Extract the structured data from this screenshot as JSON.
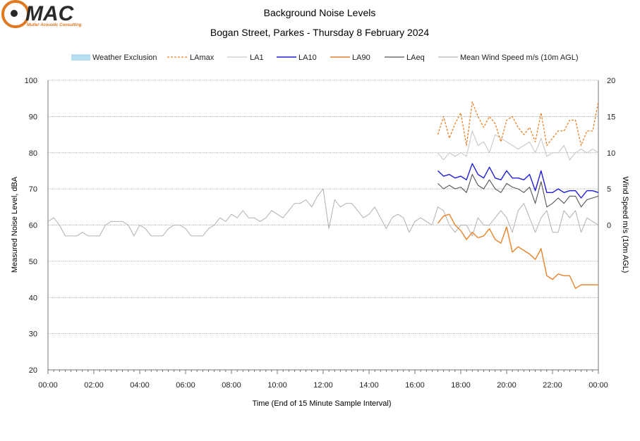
{
  "logo": {
    "brand": "MAC",
    "tagline": "Muller Acoustic Consulting"
  },
  "chart_data": {
    "type": "line",
    "title": "Background Noise Levels",
    "subtitle": "Bogan Street, Parkes - Thursday 8 February 2024",
    "xlabel": "Time (End of 15 Minute Sample Interval)",
    "ylabel": "Measured Noise Level, dBA",
    "y2label": "Wind Speed m/s (10m AGL)",
    "xlim": [
      0,
      96
    ],
    "ylim": [
      20,
      100
    ],
    "y2lim": [
      -20,
      20
    ],
    "x_tick_labels": [
      "00:00",
      "02:00",
      "04:00",
      "06:00",
      "08:00",
      "10:00",
      "12:00",
      "14:00",
      "16:00",
      "18:00",
      "20:00",
      "22:00",
      "00:00"
    ],
    "y_ticks": [
      20,
      30,
      40,
      50,
      60,
      70,
      80,
      90,
      100
    ],
    "y2_ticks": [
      0,
      5,
      10,
      15,
      20
    ],
    "grid": "horizontal",
    "legend_position": "top",
    "legend": [
      "Weather Exclusion",
      "LAmax",
      "LA1",
      "LA10",
      "LA90",
      "LAeq",
      "Mean Wind Speed m/s (10m AGL)"
    ],
    "colors": {
      "weather": "#b8dcf0",
      "LAmax": "#e8822a",
      "LA1": "#c8c8c8",
      "LA10": "#1f1fd8",
      "LA90": "#e8822a",
      "LAeq": "#555555",
      "wind": "#b0b0b0",
      "grid": "#9a9a9a",
      "logo_orange": "#e07820",
      "logo_dark": "#2a2a2a"
    },
    "series": [
      {
        "name": "LAmax",
        "style": "dashed",
        "axis": "left",
        "x_start": 68,
        "values": [
          85,
          90,
          84,
          88,
          91,
          82,
          94,
          90,
          87,
          90,
          88,
          83,
          89,
          90,
          87,
          85,
          87,
          83,
          91,
          82,
          84,
          86,
          86,
          89,
          89,
          82,
          86,
          86,
          94
        ]
      },
      {
        "name": "LA1",
        "style": "solid",
        "axis": "left",
        "x_start": 68,
        "values": [
          80,
          78,
          80,
          79,
          80,
          79,
          86,
          82,
          83,
          80,
          85,
          84,
          83,
          82,
          81,
          82,
          83,
          80,
          84,
          79,
          80,
          80,
          82,
          78,
          80,
          81,
          80,
          81,
          80
        ]
      },
      {
        "name": "LA10",
        "style": "solid",
        "axis": "left",
        "x_start": 68,
        "values": [
          75,
          73.5,
          74,
          73,
          73.5,
          72.5,
          77,
          74,
          73,
          76,
          73,
          72.5,
          75,
          73,
          73,
          72.5,
          74,
          69.5,
          75,
          69,
          69,
          70,
          69,
          69.5,
          69.5,
          67.5,
          69.5,
          69.5,
          69
        ]
      },
      {
        "name": "LA90",
        "style": "solid",
        "axis": "left",
        "x_start": 68,
        "values": [
          60.5,
          62.5,
          63,
          60,
          58.5,
          56,
          58,
          56.5,
          57,
          59,
          56,
          55,
          59.5,
          52.5,
          54,
          53,
          52,
          50.5,
          53.5,
          46,
          45,
          46.5,
          46,
          46,
          42.5,
          43.5,
          43.5,
          43.5,
          43.5
        ]
      },
      {
        "name": "LAeq",
        "style": "solid",
        "axis": "left",
        "x_start": 68,
        "values": [
          71.5,
          70,
          71,
          70,
          70.5,
          69,
          74,
          71,
          70,
          72.5,
          70,
          69,
          71.5,
          70.5,
          70,
          69,
          70.5,
          66,
          72,
          65,
          66,
          67.5,
          66,
          68,
          68,
          65,
          67,
          67.5,
          68
        ]
      },
      {
        "name": "Mean Wind Speed m/s (10m AGL)",
        "style": "solid",
        "axis": "right",
        "x_start": 0,
        "values": [
          0.5,
          1,
          0,
          -1.5,
          -1.5,
          -1.5,
          -1,
          -1.5,
          -1.5,
          -1.5,
          0,
          0.5,
          0.5,
          0.5,
          0,
          -1.5,
          0,
          -0.5,
          -1.5,
          -1.5,
          -1.5,
          -0.5,
          0,
          0,
          -0.5,
          -1.5,
          -1.5,
          -1.5,
          -0.5,
          0,
          1,
          0.5,
          1.5,
          1,
          2,
          1,
          1,
          0.5,
          1,
          2,
          1.5,
          1,
          2,
          3,
          3,
          3.5,
          2.5,
          4,
          5,
          -0.5,
          3.5,
          2.5,
          3,
          3,
          2,
          1,
          1.5,
          2.5,
          1,
          -0.5,
          1,
          1.5,
          1,
          -1,
          0.5,
          1,
          0.5,
          0,
          2.5,
          2,
          0,
          -1,
          0,
          0,
          -1.5,
          1,
          0,
          0,
          1,
          2,
          1,
          -1,
          2,
          3,
          1,
          -1,
          1,
          2,
          -1,
          -1,
          2,
          1,
          2,
          -1,
          1,
          0.5,
          0
        ]
      }
    ]
  }
}
